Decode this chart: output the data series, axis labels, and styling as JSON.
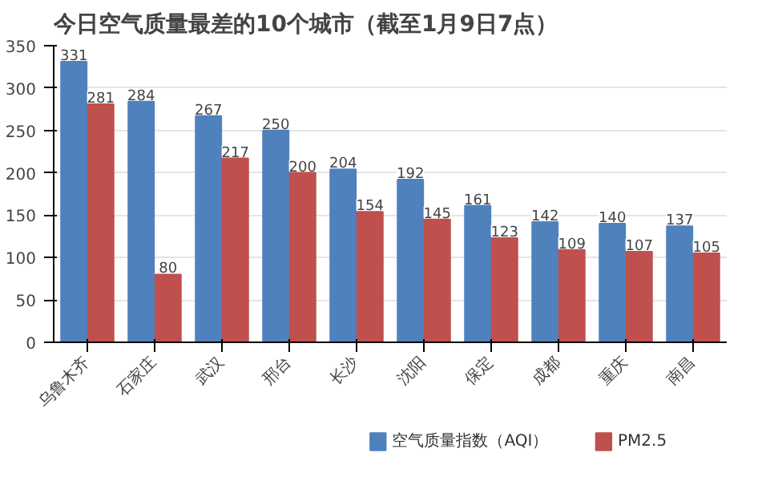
{
  "chart_data": {
    "type": "bar",
    "title": "今日空气质量最差的10个城市（截至1月9日7点）",
    "categories": [
      "乌鲁木齐",
      "石家庄",
      "武汉",
      "邢台",
      "长沙",
      "沈阳",
      "保定",
      "成都",
      "重庆",
      "南昌"
    ],
    "series": [
      {
        "name": "空气质量指数（AQI）",
        "color": "#4f81bd",
        "values": [
          331,
          284,
          267,
          250,
          204,
          192,
          161,
          142,
          140,
          137
        ]
      },
      {
        "name": "PM2.5",
        "color": "#c0504d",
        "values": [
          281,
          80,
          217,
          200,
          154,
          145,
          123,
          109,
          107,
          105
        ]
      }
    ],
    "ylim": [
      0,
      350
    ],
    "yticks": [
      0,
      50,
      100,
      150,
      200,
      250,
      300,
      350
    ],
    "grid": "y",
    "legend": "bottom",
    "data_labels": true
  }
}
